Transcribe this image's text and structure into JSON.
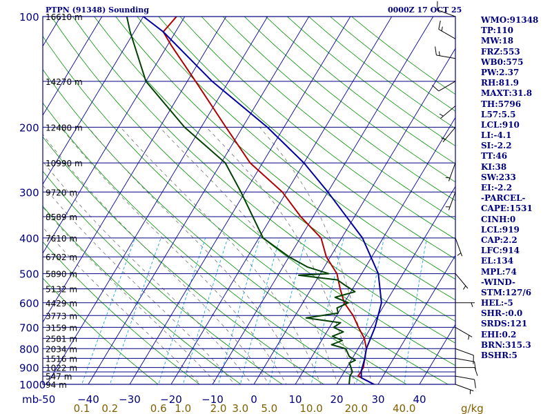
{
  "header": {
    "title": "PTPN (91348) Sounding",
    "time": "0000Z 17 OCT 25"
  },
  "chart_data": {
    "type": "skew-t",
    "title": "PTPN (91348) Sounding",
    "valid_time": "0000Z 17 OCT 25",
    "y_axis_label": "mb",
    "x_axis_label": "g/kg",
    "pressure_range": [
      1000,
      100
    ],
    "temperature_range": [
      -50,
      40
    ],
    "pressure_ticks": [
      100,
      200,
      300,
      400,
      500,
      600,
      700,
      800,
      900,
      1000
    ],
    "temperature_ticks": [
      -50,
      -40,
      -30,
      -20,
      -10,
      0,
      10,
      20,
      30,
      40
    ],
    "temperature_tick_labels": [
      "-50",
      "−40",
      "−30",
      "−20",
      "−10",
      "0",
      "10",
      "20",
      "30",
      "40"
    ],
    "mixing_ratio_labels": [
      "0.1",
      "0.2",
      "0.6",
      "1.0",
      "2.0",
      "3.0",
      "5.0",
      "10.0",
      "20.0",
      "40.0"
    ],
    "isobars": [
      100,
      150,
      200,
      250,
      300,
      350,
      400,
      450,
      500,
      550,
      600,
      650,
      700,
      750,
      800,
      850,
      900,
      925,
      950,
      1000
    ],
    "height_labels": [
      {
        "pressure": 100,
        "label": "16610 m"
      },
      {
        "pressure": 150,
        "label": "14270 m"
      },
      {
        "pressure": 200,
        "label": "12480 m"
      },
      {
        "pressure": 250,
        "label": "10990 m"
      },
      {
        "pressure": 300,
        "label": "9720 m"
      },
      {
        "pressure": 350,
        "label": "8589 m"
      },
      {
        "pressure": 400,
        "label": "7610 m"
      },
      {
        "pressure": 450,
        "label": "6702 m"
      },
      {
        "pressure": 500,
        "label": "5890 m"
      },
      {
        "pressure": 550,
        "label": "5132 m"
      },
      {
        "pressure": 600,
        "label": "4429 m"
      },
      {
        "pressure": 650,
        "label": "3773 m"
      },
      {
        "pressure": 700,
        "label": "3159 m"
      },
      {
        "pressure": 750,
        "label": "2581 m"
      },
      {
        "pressure": 800,
        "label": "2034 m"
      },
      {
        "pressure": 850,
        "label": "1516 m"
      },
      {
        "pressure": 900,
        "label": "1022 m"
      },
      {
        "pressure": 950,
        "label": "547 m"
      },
      {
        "pressure": 1000,
        "label": "94 m"
      }
    ],
    "series": [
      {
        "name": "Temperature",
        "color": "#b00000",
        "points": [
          [
            1005,
            30
          ],
          [
            1000,
            29
          ],
          [
            950,
            24
          ],
          [
            900,
            24
          ],
          [
            850,
            23
          ],
          [
            800,
            22
          ],
          [
            750,
            20
          ],
          [
            700,
            17
          ],
          [
            650,
            14
          ],
          [
            600,
            10
          ],
          [
            550,
            7
          ],
          [
            500,
            4
          ],
          [
            450,
            -1
          ],
          [
            400,
            -5
          ],
          [
            350,
            -13
          ],
          [
            300,
            -21
          ],
          [
            250,
            -33
          ],
          [
            200,
            -44
          ],
          [
            150,
            -58
          ],
          [
            120,
            -69
          ],
          [
            110,
            -73
          ],
          [
            100,
            -72
          ]
        ]
      },
      {
        "name": "Dewpoint",
        "color": "#004000",
        "points": [
          [
            1000,
            23
          ],
          [
            950,
            22
          ],
          [
            925,
            22
          ],
          [
            900,
            21
          ],
          [
            875,
            20
          ],
          [
            860,
            21
          ],
          [
            840,
            19
          ],
          [
            800,
            17
          ],
          [
            780,
            13
          ],
          [
            760,
            15
          ],
          [
            740,
            12
          ],
          [
            720,
            14
          ],
          [
            700,
            11
          ],
          [
            680,
            12
          ],
          [
            660,
            3
          ],
          [
            640,
            10
          ],
          [
            620,
            9
          ],
          [
            600,
            11
          ],
          [
            580,
            7
          ],
          [
            560,
            11
          ],
          [
            540,
            8
          ],
          [
            520,
            5
          ],
          [
            505,
            -5
          ],
          [
            500,
            2
          ],
          [
            480,
            -4
          ],
          [
            450,
            -10
          ],
          [
            400,
            -19
          ],
          [
            300,
            -31
          ],
          [
            250,
            -39
          ],
          [
            200,
            -54
          ],
          [
            150,
            -70
          ],
          [
            110,
            -81
          ],
          [
            100,
            -84
          ]
        ]
      },
      {
        "name": "Parcel path",
        "color": "#0000a0",
        "points": [
          [
            1000,
            29
          ],
          [
            960,
            25
          ],
          [
            920,
            24
          ],
          [
            850,
            23
          ],
          [
            800,
            22
          ],
          [
            700,
            21
          ],
          [
            600,
            19
          ],
          [
            500,
            14
          ],
          [
            400,
            5
          ],
          [
            300,
            -10
          ],
          [
            250,
            -20
          ],
          [
            200,
            -34
          ],
          [
            150,
            -54
          ],
          [
            110,
            -73
          ],
          [
            100,
            -80
          ]
        ]
      }
    ],
    "wind_barbs": [
      {
        "pressure": 1000,
        "direction": 110,
        "speed_kt": 5
      },
      {
        "pressure": 950,
        "direction": 100,
        "speed_kt": 10
      },
      {
        "pressure": 900,
        "direction": 90,
        "speed_kt": 10
      },
      {
        "pressure": 850,
        "direction": 100,
        "speed_kt": 10
      },
      {
        "pressure": 800,
        "direction": 110,
        "speed_kt": 10
      },
      {
        "pressure": 700,
        "direction": 120,
        "speed_kt": 5
      },
      {
        "pressure": 600,
        "direction": 90,
        "speed_kt": 5
      },
      {
        "pressure": 500,
        "direction": 140,
        "speed_kt": 5
      },
      {
        "pressure": 400,
        "direction": 160,
        "speed_kt": 5
      },
      {
        "pressure": 300,
        "direction": 200,
        "speed_kt": 5
      },
      {
        "pressure": 250,
        "direction": 200,
        "speed_kt": 5
      },
      {
        "pressure": 200,
        "direction": 220,
        "speed_kt": 5
      },
      {
        "pressure": 175,
        "direction": 230,
        "speed_kt": 5
      },
      {
        "pressure": 150,
        "direction": 240,
        "speed_kt": 10
      },
      {
        "pressure": 130,
        "direction": 280,
        "speed_kt": 15
      },
      {
        "pressure": 115,
        "direction": 300,
        "speed_kt": 15
      },
      {
        "pressure": 100,
        "direction": 290,
        "speed_kt": 10
      }
    ]
  },
  "indices": [
    "WMO:91348",
    "TP:110",
    "MW:18",
    "FRZ:553",
    "WB0:575",
    "PW:2.37",
    "RH:81.9",
    "MAXT:31.8",
    "TH:5796",
    "L57:5.5",
    "LCL:910",
    "LI:-4.1",
    "SI:-2.2",
    "TT:46",
    "KI:38",
    "SW:233",
    "EI:-2.2",
    "-PARCEL-",
    "CAPE:1531",
    "CINH:0",
    "LCL:919",
    "CAP:2.2",
    "LFC:914",
    "EL:134",
    "MPL:74",
    "-WIND-",
    "STM:127/6",
    "HEL:-5",
    "SHR-:0.0",
    "SRDS:121",
    "EHI:0.2",
    "BRN:315.3",
    "BSHR:5"
  ],
  "colors": {
    "frame": "#000080",
    "isobar": "#000080",
    "isotherm": "#0000a0",
    "dry_adiabat": "#009000",
    "moist_adiabat": "#707070",
    "mixing_ratio": "#00a0e0",
    "label_olive": "#806000"
  }
}
